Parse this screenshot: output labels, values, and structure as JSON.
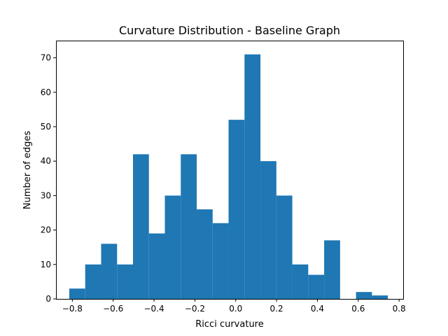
{
  "chart_data": {
    "type": "bar",
    "title": "Curvature Distribution - Baseline Graph",
    "xlabel": "Ricci curvature",
    "ylabel": "Number of edges",
    "xlim": [
      -0.88,
      0.82
    ],
    "ylim": [
      0,
      75
    ],
    "xticks": [
      -0.8,
      -0.6,
      -0.4,
      -0.2,
      0.0,
      0.2,
      0.4,
      0.6,
      0.8
    ],
    "xtick_labels": [
      "−0.8",
      "−0.6",
      "−0.4",
      "−0.2",
      "0.0",
      "0.2",
      "0.4",
      "0.6",
      "0.8"
    ],
    "yticks": [
      0,
      10,
      20,
      30,
      40,
      50,
      60,
      70
    ],
    "ytick_labels": [
      "0",
      "10",
      "20",
      "30",
      "40",
      "50",
      "60",
      "70"
    ],
    "bin_edges": [
      -0.815,
      -0.737,
      -0.659,
      -0.581,
      -0.503,
      -0.425,
      -0.347,
      -0.269,
      -0.191,
      -0.113,
      -0.035,
      0.043,
      0.121,
      0.199,
      0.277,
      0.355,
      0.433,
      0.511,
      0.589,
      0.667,
      0.745
    ],
    "values": [
      3,
      10,
      16,
      10,
      42,
      19,
      30,
      42,
      26,
      22,
      52,
      71,
      40,
      30,
      10,
      7,
      17,
      0,
      2,
      1
    ],
    "bar_color": "#1f77b4",
    "grid": false,
    "legend": "none"
  }
}
